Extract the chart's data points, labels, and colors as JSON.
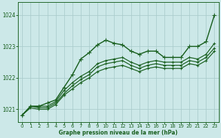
{
  "title": "Graphe pression niveau de la mer (hPa)",
  "bg_color": "#cce8e8",
  "grid_color": "#aacccc",
  "line_color": "#1a6020",
  "xlim": [
    -0.5,
    23.5
  ],
  "ylim": [
    1020.6,
    1024.4
  ],
  "yticks": [
    1021,
    1022,
    1023,
    1024
  ],
  "xticks": [
    0,
    1,
    2,
    3,
    4,
    5,
    6,
    7,
    8,
    9,
    10,
    11,
    12,
    13,
    14,
    15,
    16,
    17,
    18,
    19,
    20,
    21,
    22,
    23
  ],
  "lines": [
    [
      1020.82,
      1021.1,
      1021.1,
      1021.2,
      1021.3,
      1021.7,
      1022.1,
      1022.6,
      1022.8,
      1023.05,
      1023.2,
      1023.1,
      1023.05,
      1022.85,
      1022.75,
      1022.85,
      1022.85,
      1022.65,
      1022.65,
      1022.65,
      1023.0,
      1023.0,
      1023.15,
      1024.0
    ],
    [
      1020.82,
      1021.1,
      1021.1,
      1021.1,
      1021.25,
      1021.6,
      1021.85,
      1022.05,
      1022.2,
      1022.45,
      1022.55,
      1022.6,
      1022.65,
      1022.5,
      1022.4,
      1022.5,
      1022.55,
      1022.5,
      1022.5,
      1022.5,
      1022.65,
      1022.6,
      1022.75,
      1023.1
    ],
    [
      1020.82,
      1021.1,
      1021.05,
      1021.05,
      1021.2,
      1021.5,
      1021.75,
      1021.95,
      1022.1,
      1022.35,
      1022.45,
      1022.5,
      1022.55,
      1022.4,
      1022.3,
      1022.4,
      1022.45,
      1022.4,
      1022.4,
      1022.4,
      1022.55,
      1022.5,
      1022.65,
      1022.95
    ],
    [
      1020.82,
      1021.05,
      1021.0,
      1021.0,
      1021.15,
      1021.45,
      1021.65,
      1021.85,
      1022.0,
      1022.2,
      1022.3,
      1022.35,
      1022.4,
      1022.3,
      1022.2,
      1022.3,
      1022.35,
      1022.3,
      1022.3,
      1022.3,
      1022.45,
      1022.4,
      1022.55,
      1022.85
    ]
  ]
}
